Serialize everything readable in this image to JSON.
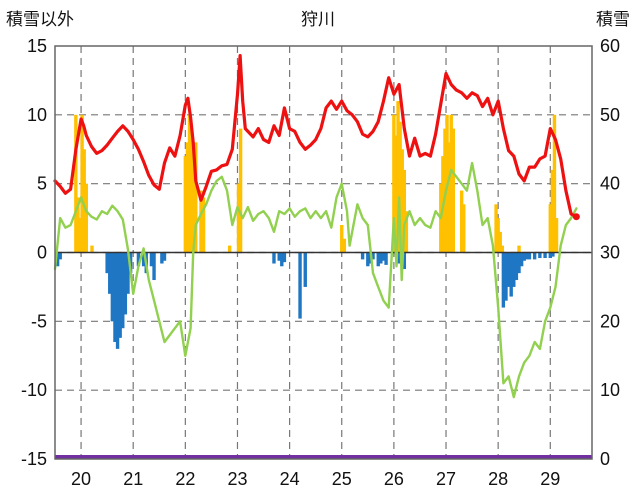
{
  "chart_data": {
    "type": "bar+line",
    "title": "狩川",
    "ylabel_left": "積雪以外",
    "ylabel_right": "積雪",
    "x_ticks": [
      "20",
      "21",
      "22",
      "23",
      "24",
      "25",
      "26",
      "27",
      "28",
      "29"
    ],
    "xlim": [
      19.5,
      29.8
    ],
    "ylim_left": [
      -15,
      15
    ],
    "ylim_right": [
      0,
      60
    ],
    "yticks_left": [
      "15",
      "10",
      "5",
      "0",
      "-5",
      "-10",
      "-15"
    ],
    "yticks_right": [
      "60",
      "50",
      "40",
      "30",
      "20",
      "10",
      "0"
    ],
    "grid": true,
    "colors": {
      "red_line": "#ee1111",
      "green_line": "#92d050",
      "orange_bars": "#ffc000",
      "blue_bars": "#1f77c4",
      "purple_baseline": "#7030a0",
      "frame": "#666666"
    },
    "series": [
      {
        "axis": "left",
        "kind": "line",
        "color": "#ee1111",
        "x": [
          19.5,
          19.6,
          19.7,
          19.8,
          19.9,
          20.0,
          20.05,
          20.1,
          20.2,
          20.3,
          20.4,
          20.5,
          20.6,
          20.7,
          20.8,
          20.9,
          21.0,
          21.1,
          21.2,
          21.3,
          21.4,
          21.5,
          21.6,
          21.7,
          21.8,
          21.9,
          22.0,
          22.05,
          22.1,
          22.15,
          22.2,
          22.3,
          22.4,
          22.5,
          22.6,
          22.7,
          22.8,
          22.9,
          23.0,
          23.05,
          23.1,
          23.15,
          23.2,
          23.3,
          23.4,
          23.5,
          23.6,
          23.7,
          23.8,
          23.9,
          24.0,
          24.1,
          24.2,
          24.3,
          24.4,
          24.5,
          24.6,
          24.7,
          24.8,
          24.9,
          25.0,
          25.1,
          25.2,
          25.3,
          25.4,
          25.5,
          25.6,
          25.7,
          25.8,
          25.9,
          26.0,
          26.1,
          26.2,
          26.3,
          26.4,
          26.5,
          26.6,
          26.7,
          26.8,
          26.9,
          27.0,
          27.1,
          27.2,
          27.3,
          27.4,
          27.5,
          27.6,
          27.7,
          27.8,
          27.9,
          28.0,
          28.1,
          28.2,
          28.3,
          28.4,
          28.5,
          28.6,
          28.7,
          28.8,
          28.9,
          29.0,
          29.1,
          29.2,
          29.3,
          29.4,
          29.5
        ],
        "y": [
          5.2,
          4.8,
          4.3,
          4.6,
          7.5,
          9.7,
          9.2,
          8.5,
          7.7,
          7.2,
          7.4,
          7.8,
          8.3,
          8.8,
          9.2,
          8.8,
          8.2,
          7.5,
          6.6,
          5.6,
          4.9,
          4.6,
          6.5,
          7.6,
          7.0,
          8.5,
          10.7,
          11.2,
          9.8,
          8.0,
          5.2,
          3.8,
          4.8,
          5.9,
          6.0,
          6.3,
          6.4,
          7.5,
          11.5,
          14.3,
          11.0,
          9.0,
          8.8,
          8.4,
          9.0,
          8.2,
          8.0,
          9.2,
          8.5,
          10.5,
          9.0,
          8.8,
          8.0,
          7.5,
          7.8,
          8.2,
          9.0,
          10.5,
          11.0,
          10.4,
          11.0,
          10.3,
          10.0,
          9.5,
          8.6,
          8.4,
          8.8,
          9.5,
          11.0,
          12.7,
          11.5,
          12.2,
          9.0,
          7.0,
          8.3,
          7.0,
          7.2,
          7.0,
          8.6,
          10.8,
          13.0,
          12.2,
          11.8,
          11.6,
          11.2,
          11.6,
          11.4,
          10.6,
          11.2,
          10.0,
          11.0,
          9.0,
          7.4,
          7.0,
          5.7,
          5.2,
          6.2,
          6.2,
          6.8,
          7.0,
          9.0,
          8.2,
          6.8,
          4.5,
          2.8,
          2.6
        ]
      },
      {
        "axis": "left",
        "kind": "line",
        "color": "#92d050",
        "x": [
          19.5,
          19.6,
          19.7,
          19.8,
          19.9,
          20.0,
          20.1,
          20.2,
          20.3,
          20.4,
          20.5,
          20.6,
          20.7,
          20.8,
          20.9,
          21.0,
          21.1,
          21.2,
          21.3,
          21.4,
          21.5,
          21.6,
          21.7,
          21.8,
          21.9,
          22.0,
          22.1,
          22.15,
          22.2,
          22.3,
          22.4,
          22.5,
          22.6,
          22.7,
          22.8,
          22.9,
          23.0,
          23.1,
          23.2,
          23.3,
          23.4,
          23.5,
          23.6,
          23.7,
          23.8,
          23.9,
          24.0,
          24.1,
          24.2,
          24.3,
          24.4,
          24.5,
          24.6,
          24.7,
          24.8,
          24.9,
          25.0,
          25.1,
          25.15,
          25.2,
          25.3,
          25.4,
          25.5,
          25.6,
          25.7,
          25.8,
          25.9,
          26.0,
          26.05,
          26.1,
          26.15,
          26.2,
          26.3,
          26.4,
          26.5,
          26.6,
          26.7,
          26.8,
          26.9,
          27.0,
          27.1,
          27.2,
          27.3,
          27.4,
          27.5,
          27.6,
          27.7,
          27.8,
          27.9,
          28.0,
          28.1,
          28.2,
          28.3,
          28.4,
          28.5,
          28.6,
          28.7,
          28.8,
          28.9,
          29.0,
          29.1,
          29.2,
          29.3,
          29.4,
          29.5
        ],
        "y": [
          -1.2,
          2.5,
          1.8,
          2.0,
          3.0,
          4.0,
          3.0,
          2.6,
          2.4,
          3.0,
          2.8,
          3.4,
          3.0,
          2.4,
          0.2,
          -3.0,
          -1.0,
          0.3,
          -2.0,
          -3.5,
          -5.0,
          -6.5,
          -6.0,
          -5.5,
          -5.0,
          -7.5,
          -5.5,
          0.0,
          2.0,
          2.8,
          3.5,
          4.5,
          5.2,
          5.5,
          4.5,
          2.0,
          3.3,
          2.5,
          3.3,
          2.3,
          2.8,
          3.0,
          2.5,
          1.5,
          3.0,
          2.8,
          3.2,
          2.6,
          3.0,
          3.2,
          2.5,
          3.0,
          2.5,
          3.0,
          1.8,
          4.0,
          5.0,
          3.0,
          0.5,
          1.5,
          3.5,
          2.5,
          2.0,
          -1.5,
          -2.5,
          -3.5,
          -4.0,
          2.5,
          -1.0,
          4.0,
          -2.0,
          2.0,
          3.0,
          2.0,
          2.5,
          2.0,
          1.8,
          3.0,
          2.5,
          4.5,
          6.0,
          5.5,
          5.0,
          4.5,
          6.5,
          4.5,
          2.0,
          2.5,
          0.5,
          -4.0,
          -9.5,
          -9.0,
          -10.5,
          -9.0,
          -8.0,
          -7.5,
          -6.5,
          -7.0,
          -5.0,
          -4.0,
          -2.5,
          0.5,
          2.0,
          2.5,
          3.2
        ]
      },
      {
        "axis": "right",
        "kind": "bar",
        "color": "#ffc000",
        "x": [
          19.9,
          19.94,
          19.98,
          20.02,
          20.06,
          20.1,
          20.21,
          22.0,
          22.04,
          22.08,
          22.12,
          22.16,
          22.2,
          22.3,
          22.35,
          22.85,
          23.02,
          23.06,
          25.0,
          25.05,
          26.0,
          26.04,
          26.08,
          26.12,
          26.16,
          26.2,
          26.24,
          26.9,
          26.94,
          26.98,
          27.02,
          27.06,
          27.1,
          27.14,
          27.3,
          27.34,
          27.96,
          28.0,
          28.04,
          28.08,
          28.4,
          28.45,
          29.0,
          29.04,
          29.08,
          29.12
        ],
        "y": [
          50,
          38,
          35,
          50,
          45,
          40,
          31,
          44,
          46,
          50,
          48,
          44,
          46,
          39,
          38,
          31,
          40,
          48,
          34,
          32,
          50,
          47,
          52,
          49,
          45,
          42,
          36,
          40,
          44,
          48,
          50,
          46,
          50,
          48,
          39,
          37,
          37,
          35,
          33,
          31,
          31,
          30,
          37,
          42,
          50,
          35
        ]
      },
      {
        "axis": "left",
        "kind": "bar",
        "color": "#1f77c4",
        "x": [
          19.55,
          19.6,
          20.5,
          20.55,
          20.6,
          20.65,
          20.7,
          20.75,
          20.8,
          20.85,
          20.9,
          20.95,
          21.1,
          21.2,
          21.25,
          21.35,
          21.4,
          21.55,
          21.6,
          23.7,
          23.8,
          23.85,
          23.9,
          24.2,
          24.3,
          25.4,
          25.5,
          25.55,
          25.6,
          25.7,
          25.75,
          25.8,
          25.85,
          26.1,
          26.2,
          28.1,
          28.15,
          28.2,
          28.25,
          28.3,
          28.35,
          28.4,
          28.45,
          28.5,
          28.55,
          28.6,
          28.7,
          28.8,
          28.9,
          29.0,
          29.05
        ],
        "y": [
          -1.0,
          -0.5,
          -1.5,
          -3.0,
          -5.0,
          -6.5,
          -7.0,
          -6.2,
          -5.5,
          -4.5,
          -3.0,
          -1.5,
          -1.0,
          -1.0,
          -1.5,
          -1.0,
          -2.0,
          -0.8,
          -0.6,
          -0.8,
          -0.6,
          -1.0,
          -0.7,
          -4.8,
          -2.5,
          -0.5,
          -1.0,
          -0.8,
          -0.5,
          -1.0,
          -0.8,
          -0.6,
          -0.9,
          -0.8,
          -1.2,
          -4.0,
          -3.5,
          -2.5,
          -3.2,
          -2.5,
          -2.0,
          -1.5,
          -1.0,
          -0.6,
          -0.5,
          -0.5,
          -0.5,
          -0.4,
          -0.4,
          -0.4,
          -0.3
        ]
      }
    ]
  }
}
